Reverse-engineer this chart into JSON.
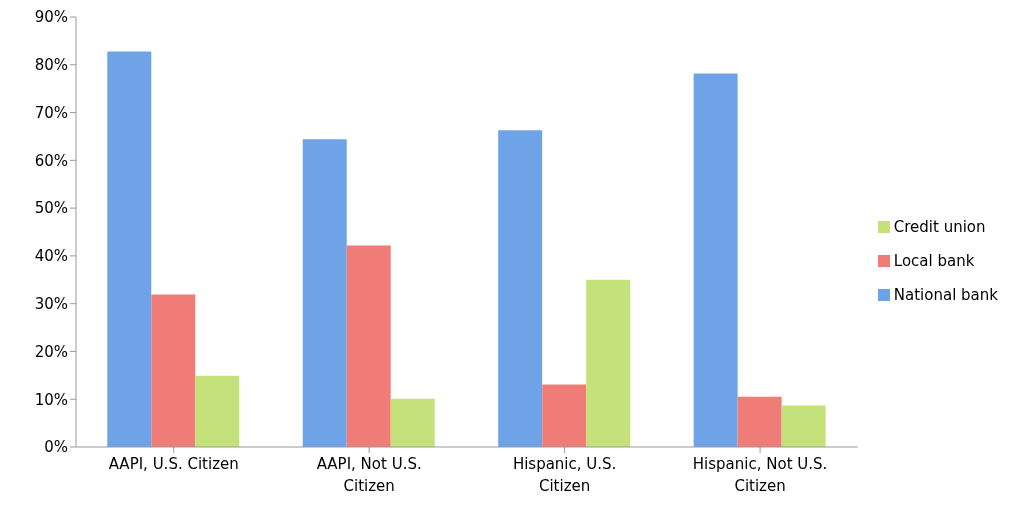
{
  "chart_data": {
    "type": "bar",
    "categories": [
      "AAPI, U.S. Citizen",
      "AAPI, Not U.S. Citizen",
      "Hispanic, U.S. Citizen",
      "Hispanic, Not U.S. Citizen"
    ],
    "series": [
      {
        "name": "National bank",
        "color": "#6fa3e8",
        "values": [
          82.8,
          64.4,
          66.3,
          78.2
        ]
      },
      {
        "name": "Local bank",
        "color": "#f07c78",
        "values": [
          31.9,
          42.2,
          13.1,
          10.5
        ]
      },
      {
        "name": "Credit union",
        "color": "#c5e27a",
        "values": [
          14.9,
          10.1,
          35,
          8.7
        ]
      }
    ],
    "ylim": [
      0,
      90
    ],
    "yticks": [
      {
        "value": 0,
        "label": "0%"
      },
      {
        "value": 10,
        "label": "10%"
      },
      {
        "value": 20,
        "label": "20%"
      },
      {
        "value": 30,
        "label": "30%"
      },
      {
        "value": 40,
        "label": "40%"
      },
      {
        "value": 50,
        "label": "50%"
      },
      {
        "value": 60,
        "label": "60%"
      },
      {
        "value": 70,
        "label": "70%"
      },
      {
        "value": 80,
        "label": "80%"
      },
      {
        "value": 90,
        "label": "90%"
      }
    ],
    "grid": false,
    "legend": "right"
  }
}
